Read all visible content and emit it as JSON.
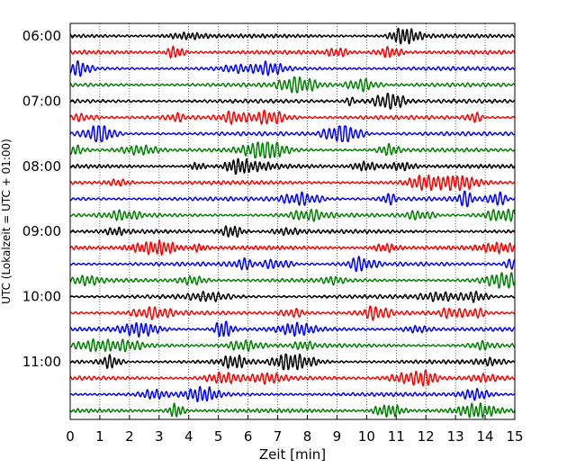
{
  "chart_data": {
    "type": "line",
    "title": "",
    "xlabel": "Zeit  [min]",
    "ylabel": "UTC (Lokalzeit = UTC + 01:00)",
    "xlim": [
      0,
      15
    ],
    "x_ticks": [
      "0",
      "1",
      "2",
      "3",
      "4",
      "5",
      "6",
      "7",
      "8",
      "9",
      "10",
      "11",
      "12",
      "13",
      "14",
      "15"
    ],
    "y_ticks": [
      "06:00",
      "07:00",
      "08:00",
      "09:00",
      "10:00",
      "11:00"
    ],
    "traces_per_hour": 4,
    "minutes_per_trace": 15,
    "grid": true,
    "trace_colors": [
      "#000000",
      "#ff0000",
      "#0000ff",
      "#008000"
    ],
    "series": [
      {
        "start": "06:00"
      },
      {
        "start": "06:15"
      },
      {
        "start": "06:30"
      },
      {
        "start": "06:45"
      },
      {
        "start": "07:00"
      },
      {
        "start": "07:15"
      },
      {
        "start": "07:30"
      },
      {
        "start": "07:45"
      },
      {
        "start": "08:00"
      },
      {
        "start": "08:15"
      },
      {
        "start": "08:30"
      },
      {
        "start": "08:45"
      },
      {
        "start": "09:00"
      },
      {
        "start": "09:15"
      },
      {
        "start": "09:30"
      },
      {
        "start": "09:45"
      },
      {
        "start": "10:00"
      },
      {
        "start": "10:15"
      },
      {
        "start": "10:30"
      },
      {
        "start": "10:45"
      },
      {
        "start": "11:00"
      },
      {
        "start": "11:15"
      },
      {
        "start": "11:30"
      },
      {
        "start": "11:45"
      }
    ]
  }
}
